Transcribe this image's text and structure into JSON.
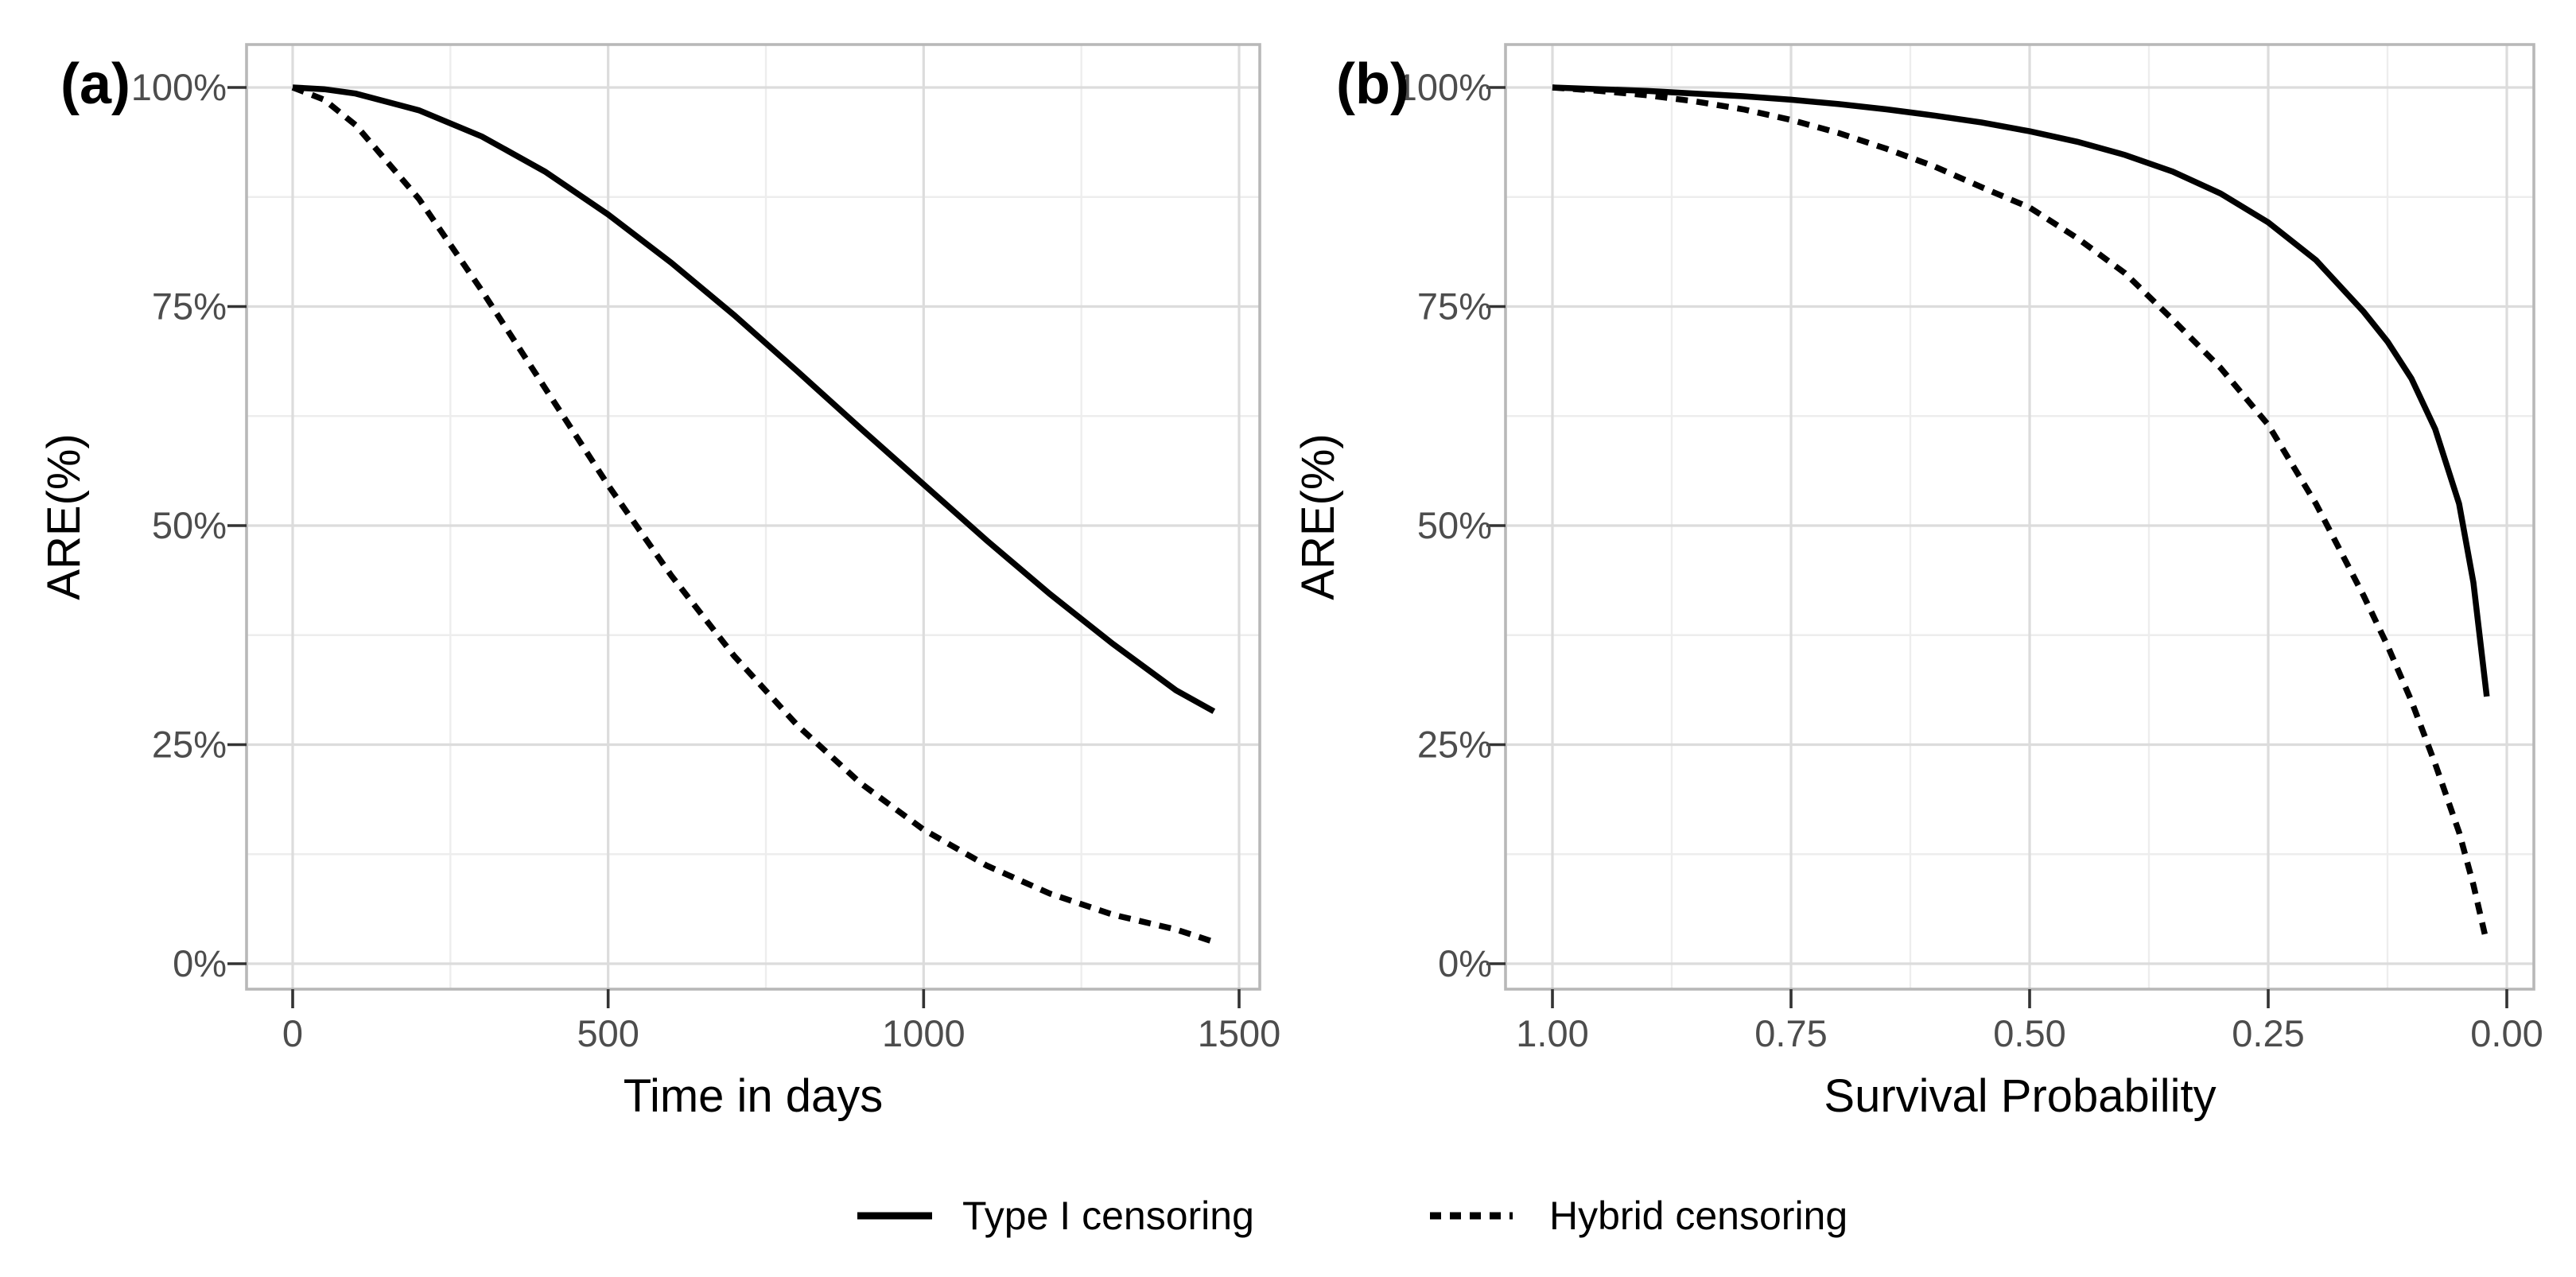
{
  "figure": {
    "background": "#ffffff",
    "curve_color": "#000000",
    "grid_major_color": "#dcdcdc",
    "grid_minor_color": "#ededed",
    "panel_border_color": "#b8b8b8",
    "tick_label_color": "#4d4d4d"
  },
  "legend": {
    "items": [
      {
        "label": "Type I censoring",
        "line_style": "solid"
      },
      {
        "label": "Hybrid censoring",
        "line_style": "dashed"
      }
    ]
  },
  "chart_data": [
    {
      "type": "line",
      "panel_letter": "(a)",
      "xlabel": "Time in days",
      "ylabel": "ARE(%)",
      "x_reversed": false,
      "xlim": [
        0,
        1500
      ],
      "ylim_percent": [
        0,
        100
      ],
      "x_tick_values": [
        0,
        500,
        1000,
        1500
      ],
      "x_tick_labels": [
        "0",
        "500",
        "1000",
        "1500"
      ],
      "x_minor_values": [
        250,
        750,
        1250
      ],
      "y_tick_values": [
        0,
        25,
        50,
        75,
        100
      ],
      "y_tick_labels": [
        "0%",
        "25%",
        "50%",
        "75%",
        "100%"
      ],
      "y_minor_values": [
        12.5,
        37.5,
        62.5,
        87.5
      ],
      "grid": true,
      "legend_position": "bottom",
      "series": [
        {
          "name": "Type I censoring",
          "style": "solid",
          "x": [
            0,
            50,
            100,
            200,
            300,
            400,
            500,
            600,
            700,
            800,
            900,
            1000,
            1100,
            1200,
            1300,
            1400,
            1460
          ],
          "y": [
            100,
            99.8,
            99.3,
            97.4,
            94.4,
            90.4,
            85.5,
            80.0,
            74.0,
            67.6,
            61.1,
            54.7,
            48.3,
            42.2,
            36.5,
            31.2,
            28.8
          ]
        },
        {
          "name": "Hybrid censoring",
          "style": "dashed",
          "x": [
            0,
            50,
            100,
            200,
            300,
            400,
            500,
            600,
            700,
            800,
            900,
            1000,
            1100,
            1200,
            1300,
            1400,
            1460
          ],
          "y": [
            100,
            98.6,
            95.7,
            87.3,
            76.8,
            65.7,
            54.6,
            44.3,
            35.1,
            27.2,
            20.6,
            15.3,
            11.2,
            8.0,
            5.6,
            3.9,
            2.5
          ]
        }
      ]
    },
    {
      "type": "line",
      "panel_letter": "(b)",
      "xlabel": "Survival Probability",
      "ylabel": "ARE(%)",
      "x_reversed": true,
      "xlim": [
        1.0,
        0.0
      ],
      "ylim_percent": [
        0,
        100
      ],
      "x_tick_values": [
        1.0,
        0.75,
        0.5,
        0.25,
        0.0
      ],
      "x_tick_labels": [
        "1.00",
        "0.75",
        "0.50",
        "0.25",
        "0.00"
      ],
      "x_minor_values": [
        0.875,
        0.625,
        0.375,
        0.125
      ],
      "y_tick_values": [
        0,
        25,
        50,
        75,
        100
      ],
      "y_tick_labels": [
        "0%",
        "25%",
        "50%",
        "75%",
        "100%"
      ],
      "y_minor_values": [
        12.5,
        37.5,
        62.5,
        87.5
      ],
      "grid": true,
      "legend_position": "bottom",
      "series": [
        {
          "name": "Type I censoring",
          "style": "solid",
          "x": [
            1.0,
            0.95,
            0.9,
            0.85,
            0.8,
            0.75,
            0.7,
            0.65,
            0.6,
            0.55,
            0.5,
            0.45,
            0.4,
            0.35,
            0.3,
            0.25,
            0.2,
            0.15,
            0.125,
            0.1,
            0.075,
            0.05,
            0.035,
            0.021
          ],
          "y": [
            100,
            99.8,
            99.6,
            99.3,
            99.0,
            98.6,
            98.1,
            97.5,
            96.8,
            96.0,
            95.0,
            93.8,
            92.3,
            90.4,
            87.9,
            84.6,
            80.3,
            74.4,
            71.0,
            66.8,
            61.0,
            52.5,
            43.5,
            30.5
          ]
        },
        {
          "name": "Hybrid censoring",
          "style": "dashed",
          "x": [
            1.0,
            0.95,
            0.9,
            0.85,
            0.8,
            0.75,
            0.7,
            0.65,
            0.6,
            0.55,
            0.5,
            0.45,
            0.4,
            0.35,
            0.3,
            0.25,
            0.2,
            0.15,
            0.125,
            0.1,
            0.075,
            0.05,
            0.035,
            0.021
          ],
          "y": [
            100,
            99.6,
            99.1,
            98.4,
            97.5,
            96.3,
            94.8,
            93.0,
            91.0,
            88.6,
            86.3,
            82.8,
            78.8,
            73.5,
            68.0,
            61.5,
            52.5,
            42.0,
            36.3,
            30.0,
            22.8,
            15.0,
            9.0,
            2.4
          ]
        }
      ]
    }
  ]
}
